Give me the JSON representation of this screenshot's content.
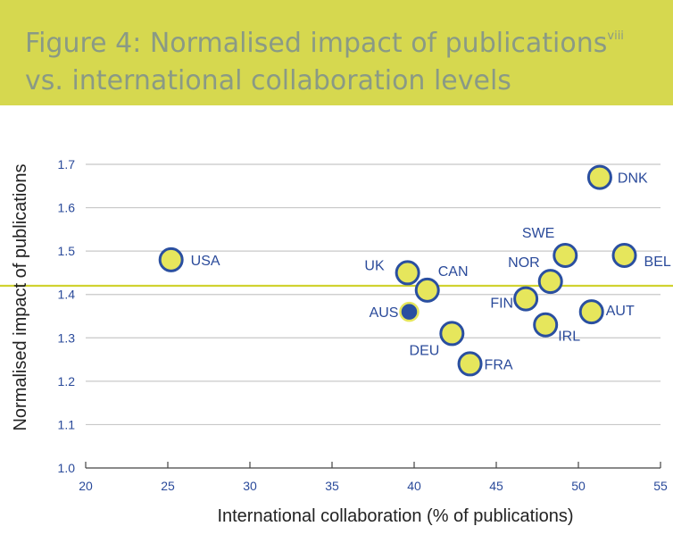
{
  "header": {
    "title_main": "Figure 4: Normalised impact of publications",
    "title_sup": "viii",
    "title_rest": " vs. international collaboration levels"
  },
  "chart_data": {
    "type": "scatter",
    "title": "Figure 4: Normalised impact of publications vs. international collaboration levels",
    "xlabel": "International collaboration (% of publications)",
    "ylabel": "Normalised impact of publications",
    "xlim": [
      20,
      55
    ],
    "ylim": [
      1.0,
      1.7
    ],
    "xticks": [
      "20",
      "25",
      "30",
      "35",
      "40",
      "45",
      "50",
      "55"
    ],
    "yticks": [
      "1.0",
      "1.1",
      "1.2",
      "1.3",
      "1.4",
      "1.5",
      "1.6",
      "1.7"
    ],
    "grid": true,
    "reference_line_y": 1.42,
    "points": [
      {
        "label": "USA",
        "x": 25.2,
        "y": 1.48,
        "color": "#e6e65c"
      },
      {
        "label": "UK",
        "x": 39.6,
        "y": 1.45,
        "color": "#e6e65c"
      },
      {
        "label": "CAN",
        "x": 40.8,
        "y": 1.41,
        "color": "#e6e65c"
      },
      {
        "label": "AUS",
        "x": 39.7,
        "y": 1.36,
        "color": "#2a4fa0"
      },
      {
        "label": "DEU",
        "x": 42.3,
        "y": 1.31,
        "color": "#e6e65c"
      },
      {
        "label": "FRA",
        "x": 43.4,
        "y": 1.24,
        "color": "#e6e65c"
      },
      {
        "label": "FIN",
        "x": 46.8,
        "y": 1.39,
        "color": "#e6e65c"
      },
      {
        "label": "NOR",
        "x": 48.3,
        "y": 1.43,
        "color": "#e6e65c"
      },
      {
        "label": "SWE",
        "x": 49.2,
        "y": 1.49,
        "color": "#e6e65c"
      },
      {
        "label": "IRL",
        "x": 48.0,
        "y": 1.33,
        "color": "#e6e65c"
      },
      {
        "label": "AUT",
        "x": 50.8,
        "y": 1.36,
        "color": "#e6e65c"
      },
      {
        "label": "DNK",
        "x": 51.3,
        "y": 1.67,
        "color": "#e6e65c"
      },
      {
        "label": "BEL",
        "x": 52.8,
        "y": 1.49,
        "color": "#e6e65c"
      }
    ],
    "colors": {
      "marker_fill": "#e6e65c",
      "marker_stroke": "#2a4fa0",
      "highlight": "#2a4fa0",
      "reference_line": "#d0d230",
      "grid": "#c8c8c8",
      "tick_text": "#2a4a9a"
    }
  }
}
